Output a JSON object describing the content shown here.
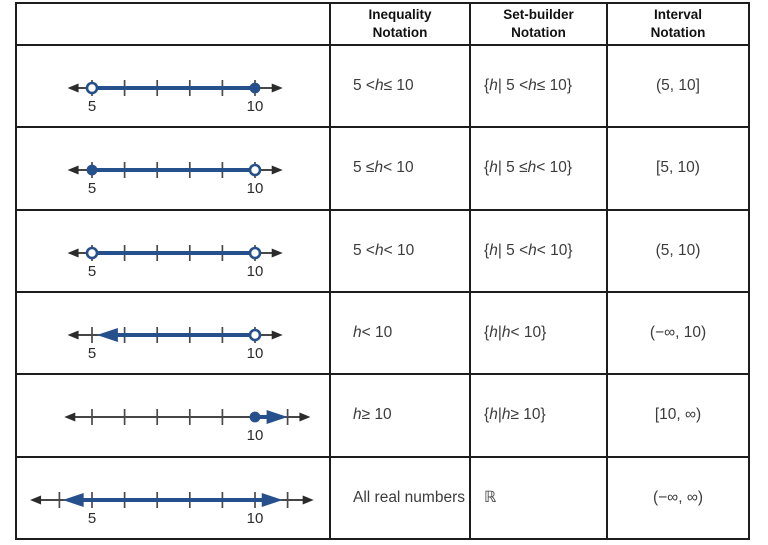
{
  "colors": {
    "blue": "#26508B",
    "axis": "#2b2b2b",
    "tick": "#4a4a4a",
    "label": "#2b2b2b",
    "border": "#1d1d1d",
    "cell_text": "#3c3c3c"
  },
  "table": {
    "headers": {
      "numberline": "",
      "inequality": {
        "line1": "Inequality",
        "line2": "Notation"
      },
      "setbuilder": {
        "line1": "Set-builder",
        "line2": "Notation"
      },
      "interval": {
        "line1": "Interval",
        "line2": "Notation"
      }
    },
    "rows": [
      {
        "inequality_parts": [
          {
            "t": "5 < "
          },
          {
            "t": "h",
            "italic": true
          },
          {
            "t": " ≤ 10"
          }
        ],
        "setbuilder_parts": [
          {
            "t": "{"
          },
          {
            "t": "h",
            "italic": true
          },
          {
            "t": " | 5 < "
          },
          {
            "t": "h",
            "italic": true
          },
          {
            "t": " ≤ 10"
          },
          {
            "t": "}"
          }
        ],
        "interval": "(5, 10]",
        "numberline": {
          "line": {
            "from": 4.25,
            "to": 10.85
          },
          "ticks": [
            5,
            6,
            7,
            8,
            9,
            10
          ],
          "labels": [
            {
              "pos": 5,
              "text": "5"
            },
            {
              "pos": 10,
              "text": "10"
            }
          ],
          "segment": {
            "from": {
              "pos": 5,
              "style": "open"
            },
            "to": {
              "pos": 10,
              "style": "closed"
            }
          }
        }
      },
      {
        "inequality_parts": [
          {
            "t": "5 ≤ "
          },
          {
            "t": "h",
            "italic": true
          },
          {
            "t": " < 10"
          }
        ],
        "setbuilder_parts": [
          {
            "t": "{"
          },
          {
            "t": "h",
            "italic": true
          },
          {
            "t": " | 5 ≤ "
          },
          {
            "t": "h",
            "italic": true
          },
          {
            "t": " < 10"
          },
          {
            "t": "}"
          }
        ],
        "interval": "[5, 10)",
        "numberline": {
          "line": {
            "from": 4.25,
            "to": 10.85
          },
          "ticks": [
            5,
            6,
            7,
            8,
            9,
            10
          ],
          "labels": [
            {
              "pos": 5,
              "text": "5"
            },
            {
              "pos": 10,
              "text": "10"
            }
          ],
          "segment": {
            "from": {
              "pos": 5,
              "style": "closed"
            },
            "to": {
              "pos": 10,
              "style": "open"
            }
          }
        }
      },
      {
        "inequality_parts": [
          {
            "t": "5 < "
          },
          {
            "t": "h",
            "italic": true
          },
          {
            "t": " < 10"
          }
        ],
        "setbuilder_parts": [
          {
            "t": "{"
          },
          {
            "t": "h",
            "italic": true
          },
          {
            "t": " | 5 < "
          },
          {
            "t": "h",
            "italic": true
          },
          {
            "t": " < 10"
          },
          {
            "t": "}"
          }
        ],
        "interval": "(5, 10)",
        "numberline": {
          "line": {
            "from": 4.25,
            "to": 10.85
          },
          "ticks": [
            5,
            6,
            7,
            8,
            9,
            10
          ],
          "labels": [
            {
              "pos": 5,
              "text": "5"
            },
            {
              "pos": 10,
              "text": "10"
            }
          ],
          "segment": {
            "from": {
              "pos": 5,
              "style": "open"
            },
            "to": {
              "pos": 10,
              "style": "open"
            }
          }
        }
      },
      {
        "inequality_parts": [
          {
            "t": "h",
            "italic": true
          },
          {
            "t": " < 10"
          }
        ],
        "setbuilder_parts": [
          {
            "t": "{"
          },
          {
            "t": "h",
            "italic": true
          },
          {
            "t": " | "
          },
          {
            "t": "h",
            "italic": true
          },
          {
            "t": " < 10"
          },
          {
            "t": "}"
          }
        ],
        "interval": "(−∞, 10)",
        "numberline": {
          "line": {
            "from": 4.25,
            "to": 10.85
          },
          "ticks": [
            5,
            6,
            7,
            8,
            9,
            10
          ],
          "labels": [
            {
              "pos": 5,
              "text": "5"
            },
            {
              "pos": 10,
              "text": "10"
            }
          ],
          "segment": {
            "from": {
              "pos": 5.15,
              "style": "arrow"
            },
            "to": {
              "pos": 10,
              "style": "open"
            }
          }
        }
      },
      {
        "inequality_parts": [
          {
            "t": "h",
            "italic": true
          },
          {
            "t": " ≥ 10"
          }
        ],
        "setbuilder_parts": [
          {
            "t": "{"
          },
          {
            "t": "h",
            "italic": true
          },
          {
            "t": " | "
          },
          {
            "t": "h",
            "italic": true
          },
          {
            "t": " ≥ 10"
          },
          {
            "t": "}"
          }
        ],
        "interval": "[10, ∞)",
        "numberline": {
          "line": {
            "from": 4.15,
            "to": 11.7
          },
          "ticks": [
            5,
            6,
            7,
            8,
            9,
            11
          ],
          "labels": [
            {
              "pos": 10,
              "text": "10"
            }
          ],
          "segment": {
            "from": {
              "pos": 10,
              "style": "closed"
            },
            "to": {
              "pos": 11,
              "style": "arrow"
            }
          }
        }
      },
      {
        "inequality_parts": [
          {
            "t": "All real numbers"
          }
        ],
        "setbuilder_parts": [
          {
            "t": "ℝ"
          }
        ],
        "interval": "(−∞, ∞)",
        "numberline": {
          "line": {
            "from": 3.1,
            "to": 11.8
          },
          "ticks": [
            4,
            5,
            6,
            7,
            8,
            9,
            10,
            11
          ],
          "labels": [
            {
              "pos": 5,
              "text": "5"
            },
            {
              "pos": 10,
              "text": "10"
            }
          ],
          "segment": {
            "from": {
              "pos": 4.1,
              "style": "arrow"
            },
            "to": {
              "pos": 10.85,
              "style": "arrow"
            }
          }
        }
      }
    ]
  }
}
